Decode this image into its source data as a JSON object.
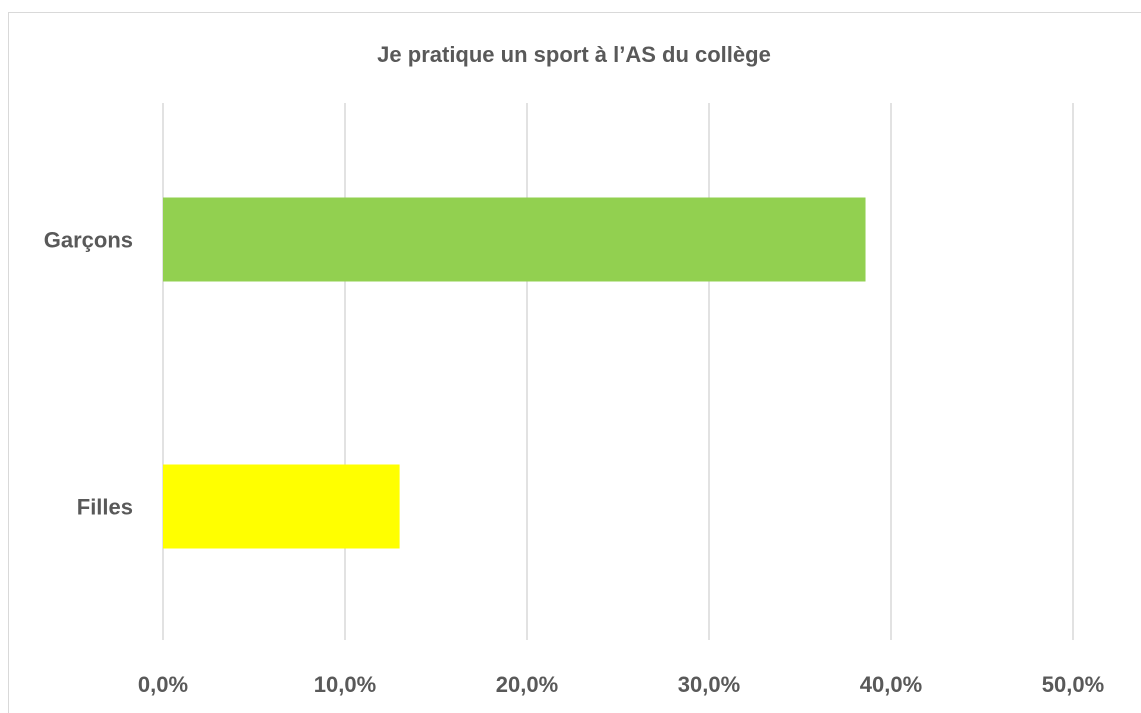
{
  "chart_data": {
    "type": "bar",
    "orientation": "horizontal",
    "title": "Je pratique un sport à l’AS du collège",
    "categories": [
      "Garçons",
      "Filles"
    ],
    "values": [
      38.6,
      13.0
    ],
    "colors": [
      "#92d050",
      "#ffff00"
    ],
    "xlim": [
      0,
      50
    ],
    "xticks": [
      {
        "value": 0,
        "label": "0,0%"
      },
      {
        "value": 10,
        "label": "10,0%"
      },
      {
        "value": 20,
        "label": "20,0%"
      },
      {
        "value": 30,
        "label": "30,0%"
      },
      {
        "value": 40,
        "label": "40,0%"
      },
      {
        "value": 50,
        "label": "50,0%"
      }
    ],
    "grid": true
  }
}
